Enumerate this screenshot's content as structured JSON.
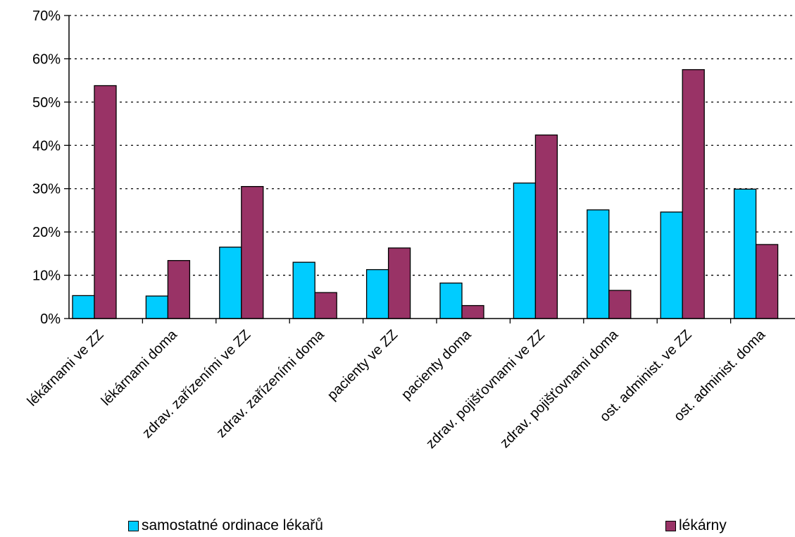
{
  "chart_data": {
    "type": "bar",
    "categories": [
      "lékárnami ve ZZ",
      "lékárnami doma",
      "zdrav. zařízeními ve ZZ",
      "zdrav. zařízeními doma",
      "pacienty ve ZZ",
      "pacienty doma",
      "zdrav. pojišťovnami  ve ZZ",
      "zdrav. pojišťovnami doma",
      "ost. administ. ve ZZ",
      "ost. administ. doma"
    ],
    "series": [
      {
        "name": "samostatné ordinace lékařů",
        "color": "#00ccff",
        "values": [
          5.3,
          5.2,
          16.5,
          13.0,
          11.3,
          8.2,
          31.3,
          25.1,
          24.6,
          29.9
        ]
      },
      {
        "name": "lékárny",
        "color": "#993366",
        "values": [
          53.8,
          13.4,
          30.5,
          6.0,
          16.3,
          3.0,
          42.4,
          6.5,
          57.5,
          17.1
        ]
      }
    ],
    "yticks": [
      "0%",
      "10%",
      "20%",
      "30%",
      "40%",
      "50%",
      "60%",
      "70%"
    ],
    "ylim": [
      0,
      70
    ],
    "grid": "dotted horizontal",
    "legend": "bottom"
  }
}
